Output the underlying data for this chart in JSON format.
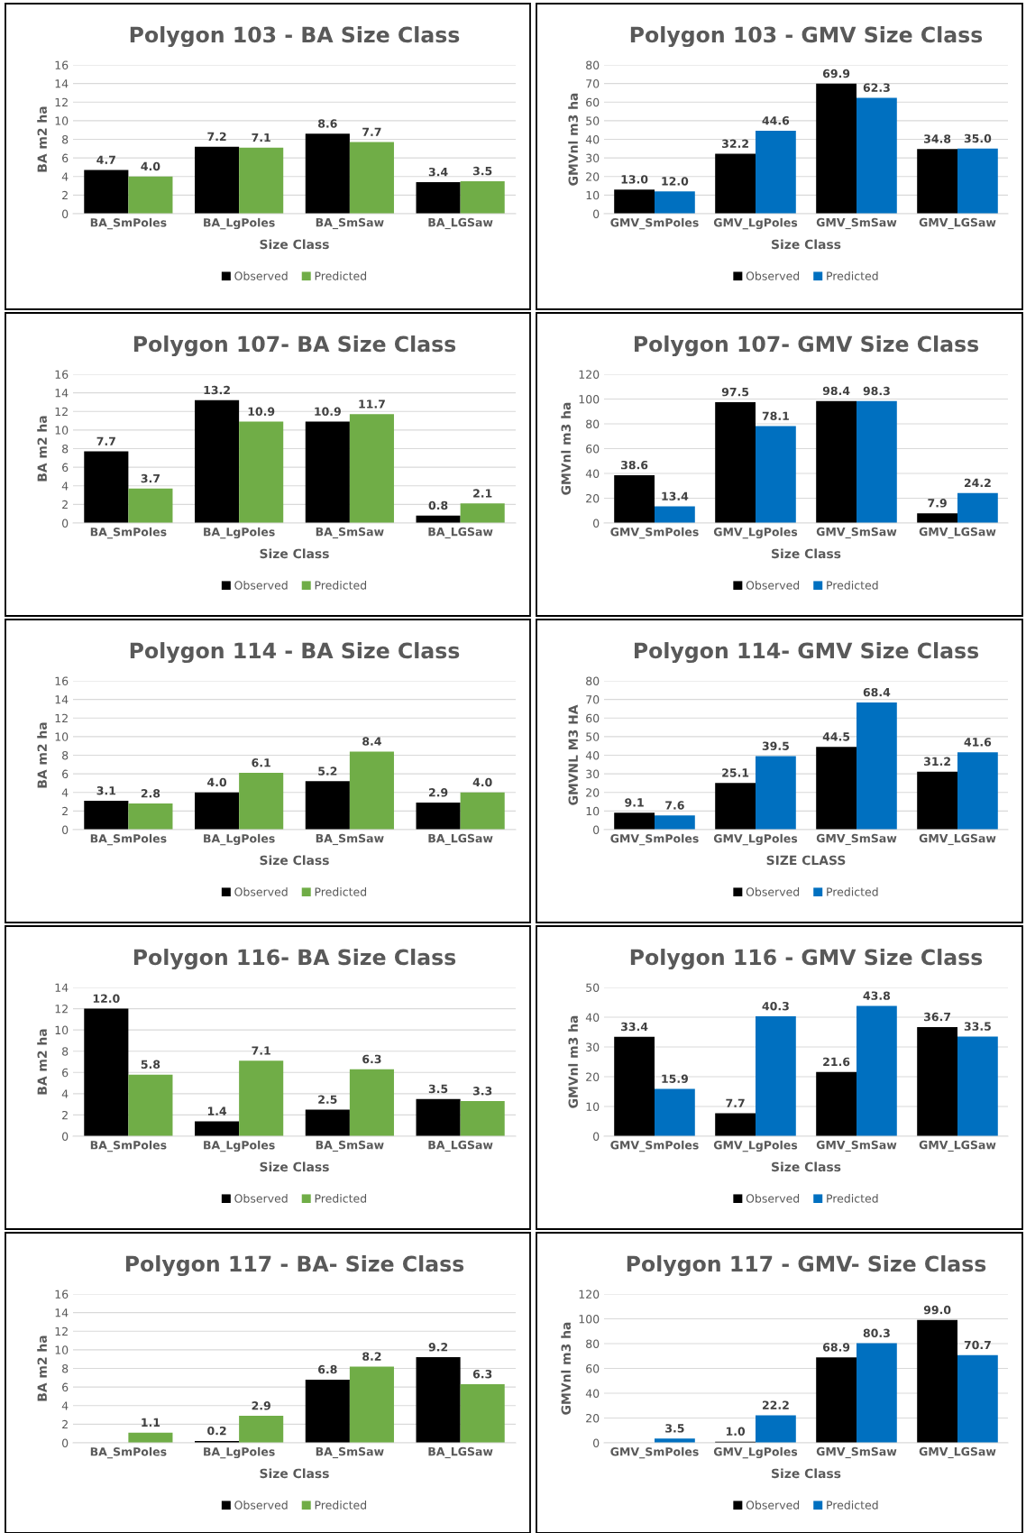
{
  "chart_data": [
    {
      "type": "bar",
      "title": "Polygon 103 - BA Size Class",
      "xlabel": "Size Class",
      "ylabel": "BA m2 ha",
      "categories": [
        "BA_SmPoles",
        "BA_LgPoles",
        "BA_SmSaw",
        "BA_LGSaw"
      ],
      "ylim": [
        0,
        16
      ],
      "yticks": [
        0,
        2,
        4,
        6,
        8,
        10,
        12,
        14,
        16
      ],
      "grid": "y",
      "legend": "bottom",
      "series": [
        {
          "name": "Observed",
          "color": "#000000",
          "values": [
            4.7,
            7.2,
            8.6,
            3.4
          ],
          "value_labels": [
            "4.7",
            "7.2",
            "8.6",
            "3.4"
          ]
        },
        {
          "name": "Predicted",
          "color": "#70ad47",
          "values": [
            4.0,
            7.1,
            7.7,
            3.5
          ],
          "value_labels": [
            "4.0",
            "7.1",
            "7.7",
            "3.5"
          ]
        }
      ]
    },
    {
      "type": "bar",
      "title": "Polygon 103 - GMV Size Class",
      "xlabel": "Size Class",
      "ylabel": "GMVnl m3 ha",
      "categories": [
        "GMV_SmPoles",
        "GMV_LgPoles",
        "GMV_SmSaw",
        "GMV_LGSaw"
      ],
      "ylim": [
        0,
        80
      ],
      "yticks": [
        0,
        10,
        20,
        30,
        40,
        50,
        60,
        70,
        80
      ],
      "grid": "y",
      "legend": "bottom",
      "series": [
        {
          "name": "Observed",
          "color": "#000000",
          "values": [
            13.0,
            32.2,
            69.9,
            34.8
          ],
          "value_labels": [
            "13.0",
            "32.2",
            "69.9",
            "34.8"
          ]
        },
        {
          "name": "Predicted",
          "color": "#0070c0",
          "values": [
            12.0,
            44.6,
            62.3,
            35.0
          ],
          "value_labels": [
            "12.0",
            "44.6",
            "62.3",
            "35.0"
          ]
        }
      ]
    },
    {
      "type": "bar",
      "title": "Polygon 107- BA Size Class",
      "xlabel": "Size Class",
      "ylabel": "BA m2 ha",
      "categories": [
        "BA_SmPoles",
        "BA_LgPoles",
        "BA_SmSaw",
        "BA_LGSaw"
      ],
      "ylim": [
        0,
        16
      ],
      "yticks": [
        0,
        2,
        4,
        6,
        8,
        10,
        12,
        14,
        16
      ],
      "grid": "y",
      "legend": "bottom",
      "series": [
        {
          "name": "Observed",
          "color": "#000000",
          "values": [
            7.7,
            13.2,
            10.9,
            0.8
          ],
          "value_labels": [
            "7.7",
            "13.2",
            "10.9",
            "0.8"
          ]
        },
        {
          "name": "Predicted",
          "color": "#70ad47",
          "values": [
            3.7,
            10.9,
            11.7,
            2.1
          ],
          "value_labels": [
            "3.7",
            "10.9",
            "11.7",
            "2.1"
          ]
        }
      ]
    },
    {
      "type": "bar",
      "title": "Polygon 107- GMV Size Class",
      "xlabel": "Size Class",
      "ylabel": "GMVnl m3 ha",
      "categories": [
        "GMV_SmPoles",
        "GMV_LgPoles",
        "GMV_SmSaw",
        "GMV_LGSaw"
      ],
      "ylim": [
        0,
        120
      ],
      "yticks": [
        0,
        20,
        40,
        60,
        80,
        100,
        120
      ],
      "grid": "y",
      "legend": "bottom",
      "series": [
        {
          "name": "Observed",
          "color": "#000000",
          "values": [
            38.6,
            97.5,
            98.4,
            7.9
          ],
          "value_labels": [
            "38.6",
            "97.5",
            "98.4",
            "7.9"
          ]
        },
        {
          "name": "Predicted",
          "color": "#0070c0",
          "values": [
            13.4,
            78.1,
            98.3,
            24.2
          ],
          "value_labels": [
            "13.4",
            "78.1",
            "98.3",
            "24.2"
          ]
        }
      ]
    },
    {
      "type": "bar",
      "title": "Polygon 114 - BA Size Class",
      "xlabel": "Size Class",
      "ylabel": "BA m2 ha",
      "categories": [
        "BA_SmPoles",
        "BA_LgPoles",
        "BA_SmSaw",
        "BA_LGSaw"
      ],
      "ylim": [
        0,
        16
      ],
      "yticks": [
        0,
        2,
        4,
        6,
        8,
        10,
        12,
        14,
        16
      ],
      "grid": "y",
      "legend": "bottom",
      "series": [
        {
          "name": "Observed",
          "color": "#000000",
          "values": [
            3.1,
            4.0,
            5.2,
            2.9
          ],
          "value_labels": [
            "3.1",
            "4.0",
            "5.2",
            "2.9"
          ]
        },
        {
          "name": "Predicted",
          "color": "#70ad47",
          "values": [
            2.8,
            6.1,
            8.4,
            4.0
          ],
          "value_labels": [
            "2.8",
            "6.1",
            "8.4",
            "4.0"
          ]
        }
      ]
    },
    {
      "type": "bar",
      "title": "Polygon 114- GMV Size Class",
      "xlabel": "SIZE CLASS",
      "ylabel": "GMVNL M3 HA",
      "categories": [
        "GMV_SmPoles",
        "GMV_LgPoles",
        "GMV_SmSaw",
        "GMV_LGSaw"
      ],
      "ylim": [
        0,
        80
      ],
      "yticks": [
        0,
        10,
        20,
        30,
        40,
        50,
        60,
        70,
        80
      ],
      "grid": "y",
      "legend": "bottom",
      "series": [
        {
          "name": "Observed",
          "color": "#000000",
          "values": [
            9.1,
            25.1,
            44.5,
            31.2
          ],
          "value_labels": [
            "9.1",
            "25.1",
            "44.5",
            "31.2"
          ]
        },
        {
          "name": "Predicted",
          "color": "#0070c0",
          "values": [
            7.6,
            39.5,
            68.4,
            41.6
          ],
          "value_labels": [
            "7.6",
            "39.5",
            "68.4",
            "41.6"
          ]
        }
      ]
    },
    {
      "type": "bar",
      "title": "Polygon 116- BA Size Class",
      "xlabel": "Size Class",
      "ylabel": "BA m2 ha",
      "categories": [
        "BA_SmPoles",
        "BA_LgPoles",
        "BA_SmSaw",
        "BA_LGSaw"
      ],
      "ylim": [
        0,
        14
      ],
      "yticks": [
        0,
        2,
        4,
        6,
        8,
        10,
        12,
        14
      ],
      "grid": "y",
      "legend": "bottom",
      "series": [
        {
          "name": "Observed",
          "color": "#000000",
          "values": [
            12.0,
            1.4,
            2.5,
            3.5
          ],
          "value_labels": [
            "12.0",
            "1.4",
            "2.5",
            "3.5"
          ]
        },
        {
          "name": "Predicted",
          "color": "#70ad47",
          "values": [
            5.8,
            7.1,
            6.3,
            3.3
          ],
          "value_labels": [
            "5.8",
            "7.1",
            "6.3",
            "3.3"
          ]
        }
      ]
    },
    {
      "type": "bar",
      "title": "Polygon 116 - GMV Size Class",
      "xlabel": "Size Class",
      "ylabel": "GMVnl m3 ha",
      "categories": [
        "GMV_SmPoles",
        "GMV_LgPoles",
        "GMV_SmSaw",
        "GMV_LGSaw"
      ],
      "ylim": [
        0,
        50
      ],
      "yticks": [
        0,
        10,
        20,
        30,
        40,
        50
      ],
      "grid": "y",
      "legend": "bottom",
      "series": [
        {
          "name": "Observed",
          "color": "#000000",
          "values": [
            33.4,
            7.7,
            21.6,
            36.7
          ],
          "value_labels": [
            "33.4",
            "7.7",
            "21.6",
            "36.7"
          ]
        },
        {
          "name": "Predicted",
          "color": "#0070c0",
          "values": [
            15.9,
            40.3,
            43.8,
            33.5
          ],
          "value_labels": [
            "15.9",
            "40.3",
            "43.8",
            "33.5"
          ]
        }
      ]
    },
    {
      "type": "bar",
      "title": "Polygon 117 - BA- Size Class",
      "xlabel": "Size Class",
      "ylabel": "BA m2 ha",
      "categories": [
        "BA_SmPoles",
        "BA_LgPoles",
        "BA_SmSaw",
        "BA_LGSaw"
      ],
      "ylim": [
        0,
        16
      ],
      "yticks": [
        0,
        2,
        4,
        6,
        8,
        10,
        12,
        14,
        16
      ],
      "grid": "y",
      "legend": "bottom",
      "series": [
        {
          "name": "Observed",
          "color": "#000000",
          "values": [
            null,
            0.2,
            6.8,
            9.2
          ],
          "value_labels": [
            null,
            "0.2",
            "6.8",
            "9.2"
          ]
        },
        {
          "name": "Predicted",
          "color": "#70ad47",
          "values": [
            1.1,
            2.9,
            8.2,
            6.3
          ],
          "value_labels": [
            "1.1",
            "2.9",
            "8.2",
            "6.3"
          ]
        }
      ]
    },
    {
      "type": "bar",
      "title": "Polygon 117 - GMV- Size Class",
      "xlabel": "Size Class",
      "ylabel": "GMVnl m3 ha",
      "categories": [
        "GMV_SmPoles",
        "GMV_LgPoles",
        "GMV_SmSaw",
        "GMV_LGSaw"
      ],
      "ylim": [
        0,
        120
      ],
      "yticks": [
        0,
        20,
        40,
        60,
        80,
        100,
        120
      ],
      "grid": "y",
      "legend": "bottom",
      "series": [
        {
          "name": "Observed",
          "color": "#000000",
          "values": [
            null,
            1.0,
            68.9,
            99.0
          ],
          "value_labels": [
            null,
            "1.0",
            "68.9",
            "99.0"
          ]
        },
        {
          "name": "Predicted",
          "color": "#0070c0",
          "values": [
            3.5,
            22.2,
            80.3,
            70.7
          ],
          "value_labels": [
            "3.5",
            "22.2",
            "80.3",
            "70.7"
          ]
        }
      ]
    }
  ]
}
